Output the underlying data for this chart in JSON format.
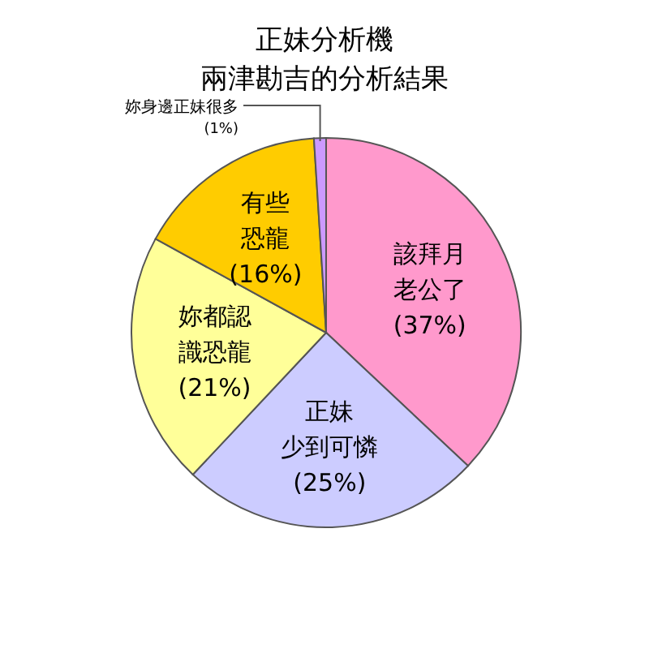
{
  "chart_data": {
    "type": "pie",
    "title": "正妹分析機",
    "subtitle": "兩津勘吉的分析結果",
    "categories": [
      "該拜月老公了",
      "正妹少到可憐",
      "妳都認識恐龍",
      "有些恐龍",
      "妳身邊正妹很多"
    ],
    "values": [
      37,
      25,
      21,
      16,
      1
    ],
    "value_labels": [
      "(37%)",
      "(25%)",
      "(21%)",
      "(16%)",
      "(1%)"
    ],
    "colors": [
      "#ff99cc",
      "#ccccff",
      "#ffff99",
      "#ffcc00",
      "#cc99ff"
    ],
    "legend": false
  }
}
